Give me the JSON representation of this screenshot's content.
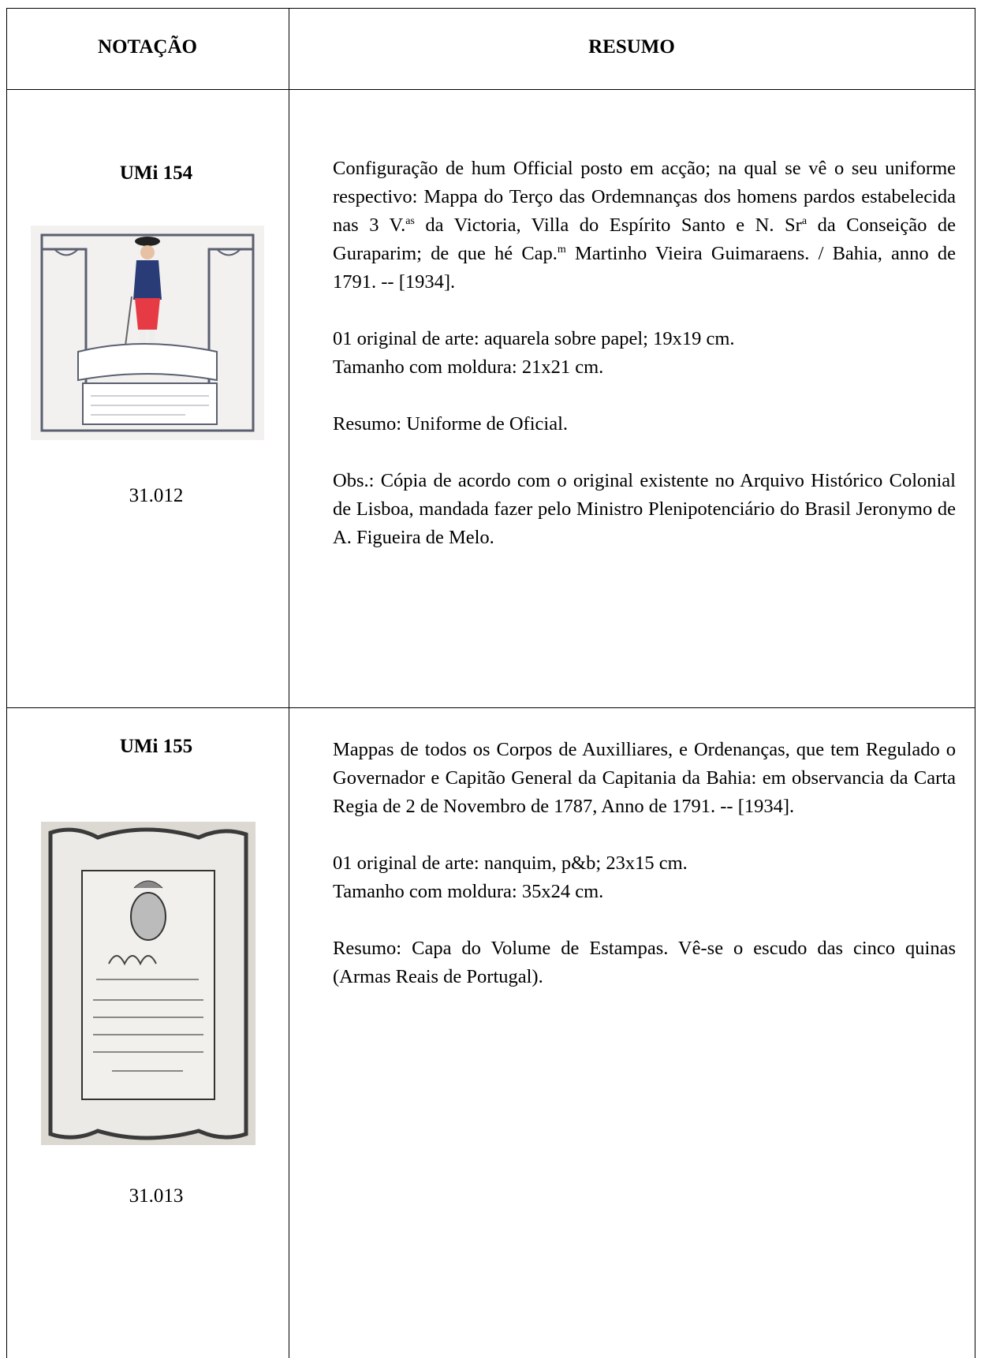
{
  "table": {
    "headers": [
      "NOTAÇÃO",
      "RESUMO"
    ],
    "rows": [
      {
        "code": "UMi 154",
        "number": "31.012",
        "paragraphs": [
          [
            "Configuração de hum Official posto em acção; na qual se vê o seu uniforme respectivo: Mappa do Terço das Ordemnanças dos homens pardos estabelecida nas 3 V.",
            "as",
            " da Victoria, Villa do Espírito Santo e N. Sr",
            "a",
            " da Conseição de Guraparim; de que hé Cap.",
            "m",
            " Martinho Vieira Guimaraens.  / Bahia, anno de 1791. -- [1934]."
          ],
          [
            "01 original de arte: aquarela sobre papel; 19x19 cm.",
            "Tamanho com moldura: 21x21 cm."
          ],
          [
            "Resumo: Uniforme de Oficial."
          ],
          [
            "Obs.: Cópia de acordo com o original existente no Arquivo Histórico Colonial de Lisboa, mandada fazer pelo Ministro Plenipotenciário do Brasil Jeronymo de A. Figueira de Melo."
          ]
        ]
      },
      {
        "code": "UMi 155",
        "number": "31.013",
        "paragraphs": [
          [
            "Mappas de todos os Corpos de Auxilliares, e Ordenanças, que tem Regulado o Governador e Capitão General da Capitania da Bahia: em observancia da Carta Regia de 2 de Novembro de 1787,  Anno de 1791. -- [1934]."
          ],
          [
            "01 original de arte: nanquim, p&b; 23x15 cm.",
            "Tamanho com moldura: 35x24 cm."
          ],
          [
            "Resumo: Capa do Volume de Estampas. Vê-se o escudo das cinco quinas (Armas Reais de Portugal)."
          ]
        ]
      }
    ]
  }
}
